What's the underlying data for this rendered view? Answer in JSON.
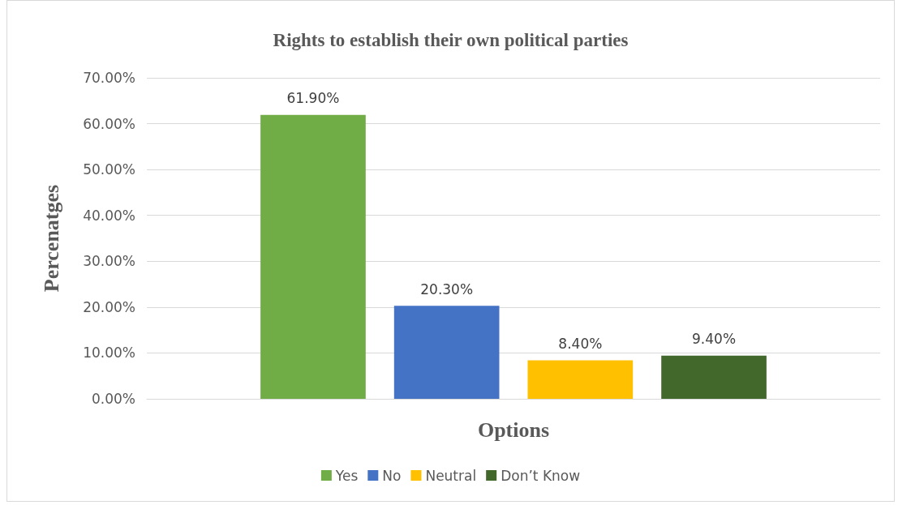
{
  "chart_data": {
    "type": "bar",
    "title": "Rights to establish their own political parties",
    "xlabel": "Options",
    "ylabel": "Percenatges",
    "categories": [
      null
    ],
    "series": [
      {
        "name": "Yes",
        "color": "#70ad47",
        "values": [
          61.9
        ],
        "value_labels": [
          "61.90%"
        ]
      },
      {
        "name": "No",
        "color": "#4472c4",
        "values": [
          20.3
        ],
        "value_labels": [
          "20.30%"
        ]
      },
      {
        "name": "Neutral",
        "color": "#ffc000",
        "values": [
          8.4
        ],
        "value_labels": [
          "8.40%"
        ]
      },
      {
        "name": "Don’t Know",
        "color": "#43682b",
        "values": [
          9.4
        ],
        "value_labels": [
          "9.40%"
        ]
      }
    ],
    "ylim": [
      0,
      70
    ],
    "yticks": [
      {
        "value": 0,
        "label": "0.00%"
      },
      {
        "value": 10,
        "label": "10.00%"
      },
      {
        "value": 20,
        "label": "20.00%"
      },
      {
        "value": 30,
        "label": "30.00%"
      },
      {
        "value": 40,
        "label": "40.00%"
      },
      {
        "value": 50,
        "label": "50.00%"
      },
      {
        "value": 60,
        "label": "60.00%"
      },
      {
        "value": 70,
        "label": "70.00%"
      }
    ],
    "grid": "y",
    "legend": "bottom"
  }
}
